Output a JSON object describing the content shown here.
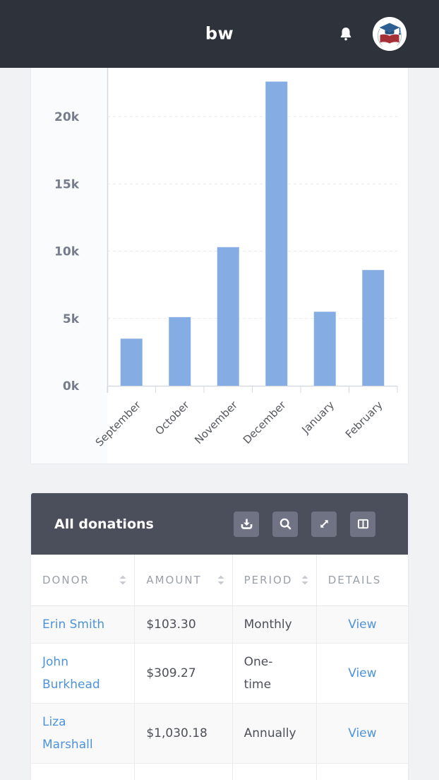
{
  "header": {
    "logo_text": "bw",
    "bell_icon": "bell-icon",
    "avatar_icon": "school-crest-avatar"
  },
  "colors": {
    "app_header_bg": "#2e323b",
    "panel_header_bg": "#4b4e5b",
    "toolbar_button_bg": "#6f7384",
    "bar_fill": "#85ade3",
    "link_blue": "#4e93d9",
    "row_stripe": "#f9f9fa",
    "axis_line": "#d5d9e0",
    "gridline": "#e9e9ea",
    "crest_cap_blue": "#2d5e92",
    "crest_book_red": "#a63038"
  },
  "chart_data": {
    "type": "bar",
    "title": "",
    "xlabel": "",
    "ylabel": "",
    "categories": [
      "September",
      "October",
      "November",
      "December",
      "January",
      "February"
    ],
    "values": [
      3500,
      5100,
      10300,
      22600,
      5500,
      8600
    ],
    "yticks": [
      {
        "value": 0,
        "label": "0k"
      },
      {
        "value": 5000,
        "label": "5k"
      },
      {
        "value": 10000,
        "label": "10k"
      },
      {
        "value": 15000,
        "label": "15k"
      },
      {
        "value": 20000,
        "label": "20k"
      }
    ],
    "ylim": [
      0,
      23600
    ],
    "grid": "horizontal-dashed",
    "legend": "none",
    "x_tick_label_rotation": -45
  },
  "donations": {
    "title": "All donations",
    "toolbar_buttons": [
      {
        "name": "download",
        "icon": "download-icon"
      },
      {
        "name": "search",
        "icon": "search-icon"
      },
      {
        "name": "expand",
        "icon": "expand-arrows-icon"
      },
      {
        "name": "columns",
        "icon": "columns-icon"
      }
    ],
    "table": {
      "columns": [
        {
          "label": "DONOR",
          "sortable": true
        },
        {
          "label": "AMOUNT",
          "sortable": true
        },
        {
          "label": "PERIOD",
          "sortable": true
        },
        {
          "label": "DETAILS",
          "sortable": false
        }
      ],
      "rows": [
        {
          "donor": "Erin Smith",
          "amount": "$103.30",
          "period": "Monthly",
          "details": "View"
        },
        {
          "donor": "John Burkhead",
          "amount": "$309.27",
          "period": "One-time",
          "details": "View"
        },
        {
          "donor": "Liza Marshall",
          "amount": "$1,030.18",
          "period": "Annually",
          "details": "View"
        }
      ]
    }
  }
}
